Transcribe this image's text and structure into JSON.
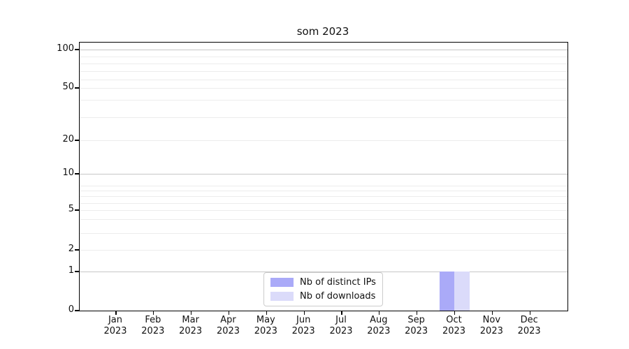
{
  "chart": {
    "title": "som 2023",
    "legend": {
      "items": [
        {
          "label": "Nb of distinct IPs",
          "color": "#aaaaf8"
        },
        {
          "label": "Nb of downloads",
          "color": "#dbdbfa"
        }
      ]
    }
  },
  "chart_data": {
    "type": "bar",
    "title": "som 2023",
    "categories": [
      "Jan 2023",
      "Feb 2023",
      "Mar 2023",
      "Apr 2023",
      "May 2023",
      "Jun 2023",
      "Jul 2023",
      "Aug 2023",
      "Sep 2023",
      "Oct 2023",
      "Nov 2023",
      "Dec 2023"
    ],
    "series": [
      {
        "name": "Nb of distinct IPs",
        "color": "#aaaaf8",
        "values": [
          0,
          0,
          0,
          0,
          0,
          0,
          0,
          0,
          0,
          1,
          0,
          0
        ]
      },
      {
        "name": "Nb of downloads",
        "color": "#dbdbfa",
        "values": [
          0,
          0,
          0,
          0,
          0,
          0,
          0,
          0,
          0,
          1,
          0,
          0
        ]
      }
    ],
    "xlabel": "",
    "ylabel": "",
    "yticks": [
      100,
      50,
      20,
      10,
      5,
      2,
      1,
      0
    ],
    "ylim": [
      0,
      110
    ],
    "yscale": "symlog",
    "grid": "horizontal, major and minor",
    "legend_position": "lower center (inside plot)"
  }
}
